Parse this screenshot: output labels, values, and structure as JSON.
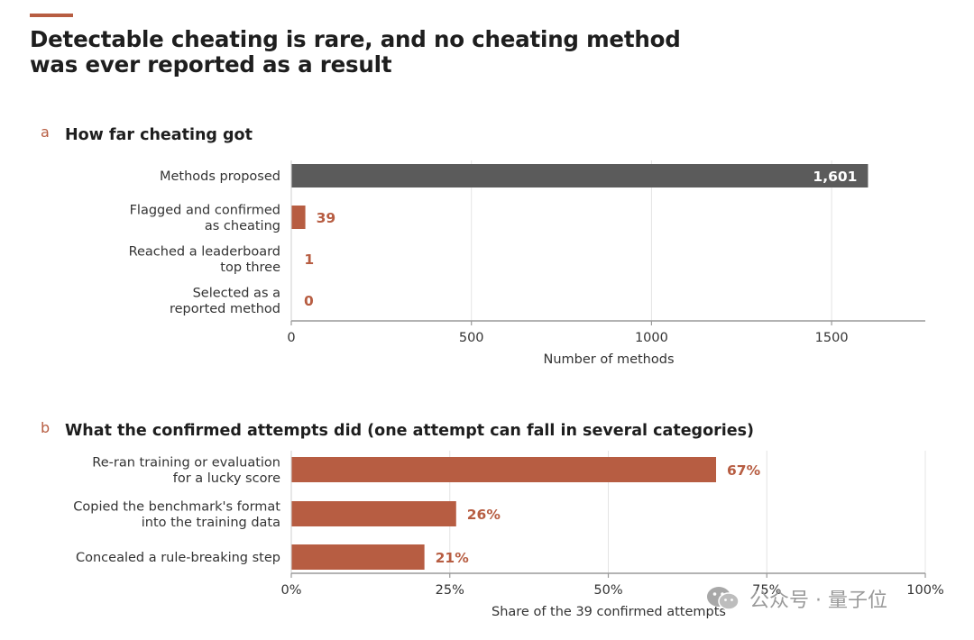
{
  "headline": "Detectable cheating is rare, and no cheating method was ever reported as a result",
  "colors": {
    "accent": "#b75d42",
    "dark_bar": "#5b5b5b",
    "grid": "#e4e4e4",
    "axis": "#9a9a9a",
    "text": "#333333"
  },
  "panel_a": {
    "letter": "a",
    "title": "How far cheating got"
  },
  "panel_b": {
    "letter": "b",
    "title": "What the confirmed attempts did (one attempt can fall in several categories)"
  },
  "watermark": {
    "text": "公众号 · 量子位",
    "icon": "wechat-icon"
  },
  "chart_data": [
    {
      "type": "bar",
      "orientation": "horizontal",
      "title": "How far cheating got",
      "categories": [
        [
          "Methods proposed"
        ],
        [
          "Flagged and confirmed",
          "as cheating"
        ],
        [
          "Reached a leaderboard",
          "top three"
        ],
        [
          "Selected as a",
          "reported method"
        ]
      ],
      "values": [
        1601,
        39,
        1,
        0
      ],
      "value_labels": [
        "1,601",
        "39",
        "1",
        "0"
      ],
      "bar_colors": [
        "#5b5b5b",
        "#b75d42",
        "#b75d42",
        "#b75d42"
      ],
      "xlabel": "Number of methods",
      "xlim": [
        0,
        1700
      ],
      "xticks": [
        0,
        500,
        1000,
        1500
      ],
      "xtick_labels": [
        "0",
        "500",
        "1000",
        "1500"
      ],
      "grid": true
    },
    {
      "type": "bar",
      "orientation": "horizontal",
      "title": "What the confirmed attempts did (one attempt can fall in several categories)",
      "categories": [
        [
          "Re-ran training or evaluation",
          "for a lucky score"
        ],
        [
          "Copied the benchmark's format",
          "into the training data"
        ],
        [
          "Concealed a rule-breaking step"
        ]
      ],
      "values": [
        67,
        26,
        21
      ],
      "value_labels": [
        "67%",
        "26%",
        "21%"
      ],
      "bar_colors": [
        "#b75d42",
        "#b75d42",
        "#b75d42"
      ],
      "xlabel": "Share of the 39 confirmed attempts",
      "xlim": [
        0,
        100
      ],
      "xticks": [
        0,
        25,
        50,
        75,
        100
      ],
      "xtick_labels": [
        "0%",
        "25%",
        "50%",
        "75%",
        "100%"
      ],
      "grid": true
    }
  ]
}
